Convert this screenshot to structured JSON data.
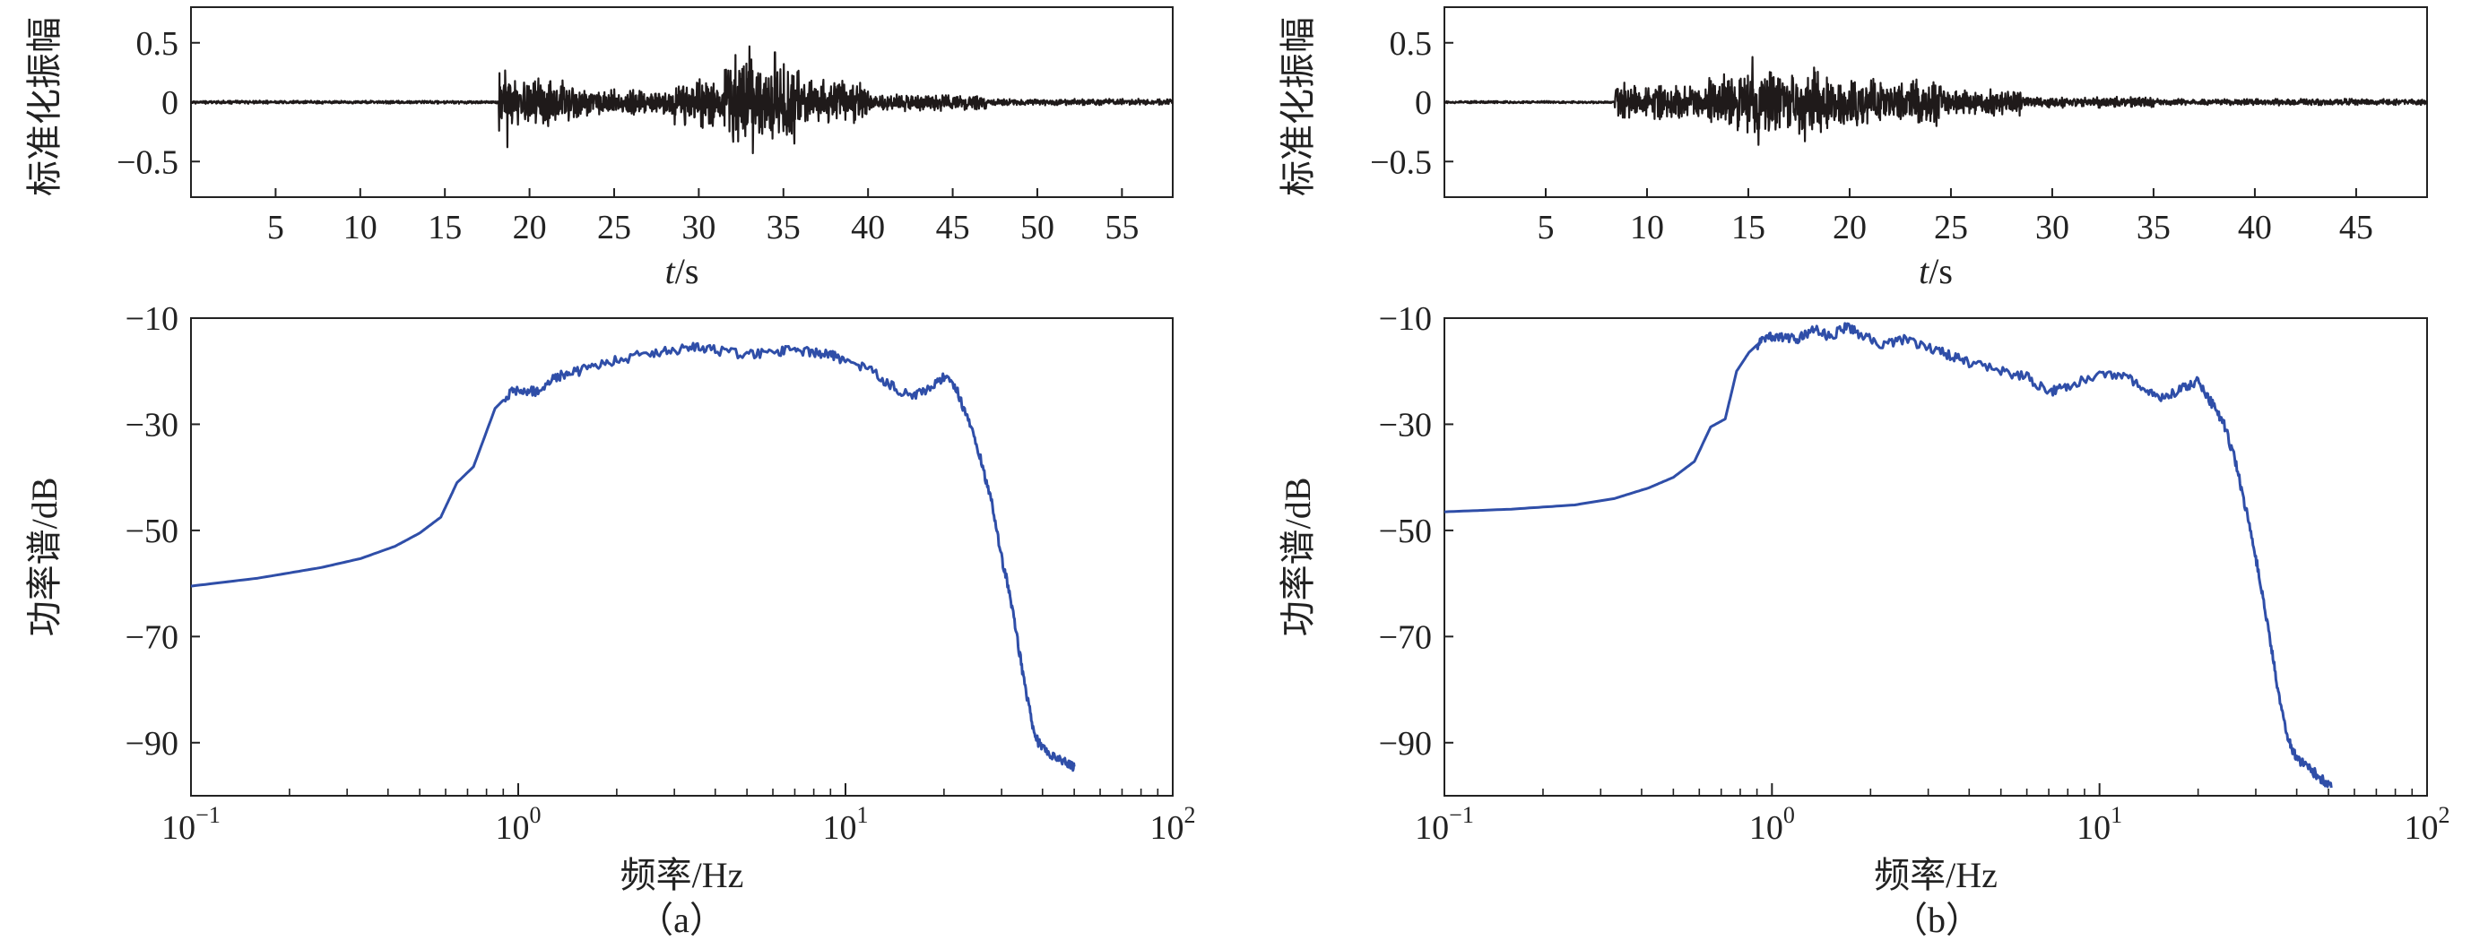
{
  "figure": {
    "panel_labels": [
      "（a）",
      "（b）"
    ]
  },
  "colors": {
    "waveform": "#1f1a1a",
    "spectrum": "#2f4ea8",
    "axis": "#222222"
  },
  "chart_data": [
    {
      "id": "a_time",
      "type": "line",
      "title": "",
      "xlabel_italic": "t",
      "xlabel_unit": "/s",
      "ylabel": "标准化振幅",
      "xlim": [
        0,
        58
      ],
      "ylim": [
        -0.8,
        0.8
      ],
      "xticks": [
        5,
        10,
        15,
        20,
        25,
        30,
        35,
        40,
        45,
        50,
        55
      ],
      "yticks": [
        0.5,
        0,
        -0.5
      ],
      "ytick_labels": [
        "0.5",
        "0",
        "−0.5"
      ],
      "envelope": {
        "baseline": 0.015,
        "segments": [
          {
            "from": 0,
            "to": 18.2,
            "amp": 0.015
          },
          {
            "from": 18.2,
            "to": 19.0,
            "amp": 0.3
          },
          {
            "from": 19.0,
            "to": 23.0,
            "amp": 0.22
          },
          {
            "from": 23.0,
            "to": 28.5,
            "amp": 0.12
          },
          {
            "from": 28.5,
            "to": 31.5,
            "amp": 0.22
          },
          {
            "from": 31.5,
            "to": 36.0,
            "amp": 0.4
          },
          {
            "from": 36.0,
            "to": 40.0,
            "amp": 0.2
          },
          {
            "from": 40.0,
            "to": 47.0,
            "amp": 0.08
          },
          {
            "from": 47.0,
            "to": 58.0,
            "amp": 0.03
          }
        ],
        "peaks": [
          {
            "t": 18.7,
            "v": -0.38
          },
          {
            "t": 33.0,
            "v": 0.47
          },
          {
            "t": 33.2,
            "v": -0.43
          },
          {
            "t": 34.5,
            "v": 0.42
          }
        ]
      }
    },
    {
      "id": "b_time",
      "type": "line",
      "title": "",
      "xlabel_italic": "t",
      "xlabel_unit": "/s",
      "ylabel": "标准化振幅",
      "xlim": [
        0,
        48.5
      ],
      "ylim": [
        -0.8,
        0.8
      ],
      "xticks": [
        5,
        10,
        15,
        20,
        25,
        30,
        35,
        40,
        45
      ],
      "yticks": [
        0.5,
        0,
        -0.5
      ],
      "ytick_labels": [
        "0.5",
        "0",
        "−0.5"
      ],
      "envelope": {
        "baseline": 0.012,
        "segments": [
          {
            "from": 0,
            "to": 8.4,
            "amp": 0.012
          },
          {
            "from": 8.4,
            "to": 13.0,
            "amp": 0.17
          },
          {
            "from": 13.0,
            "to": 19.0,
            "amp": 0.3
          },
          {
            "from": 19.0,
            "to": 24.5,
            "amp": 0.22
          },
          {
            "from": 24.5,
            "to": 28.5,
            "amp": 0.12
          },
          {
            "from": 28.5,
            "to": 35.0,
            "amp": 0.05
          },
          {
            "from": 35.0,
            "to": 48.5,
            "amp": 0.03
          }
        ],
        "peaks": [
          {
            "t": 15.2,
            "v": 0.38
          },
          {
            "t": 15.5,
            "v": -0.36
          },
          {
            "t": 17.8,
            "v": -0.33
          }
        ]
      }
    },
    {
      "id": "a_spec",
      "type": "line",
      "xscale": "log",
      "xlabel": "频率/Hz",
      "ylabel": "功率谱/dB",
      "xlim": [
        0.1,
        100
      ],
      "ylim": [
        -100,
        -10
      ],
      "xticks": [
        0.1,
        1,
        10,
        100
      ],
      "xtick_labels": [
        {
          "base": "10",
          "exp": "−1"
        },
        {
          "base": "10",
          "exp": "0"
        },
        {
          "base": "10",
          "exp": "1"
        },
        {
          "base": "10",
          "exp": "2"
        }
      ],
      "yticks": [
        -10,
        -30,
        -50,
        -70,
        -90
      ],
      "ytick_labels": [
        "−10",
        "−30",
        "−50",
        "−70",
        "−90"
      ],
      "x": [
        0.1,
        0.16,
        0.25,
        0.33,
        0.42,
        0.5,
        0.58,
        0.65,
        0.73,
        0.85,
        0.95,
        1.05,
        1.15,
        1.3,
        1.45,
        1.7,
        2.0,
        2.5,
        3.0,
        3.5,
        4.0,
        5.0,
        6.0,
        7.0,
        8.0,
        9.0,
        10.0,
        12.0,
        14.0,
        16.0,
        18.0,
        20.0,
        22.0,
        24.0,
        26.0,
        28.0,
        30.0,
        32.0,
        34.0,
        36.0,
        38.0,
        40.0,
        44.0,
        48.0,
        50.0
      ],
      "y": [
        -60.5,
        -59,
        -57,
        -55.3,
        -53,
        -50.5,
        -47.5,
        -41,
        -38,
        -27,
        -24,
        -23.5,
        -24,
        -21,
        -20.5,
        -19,
        -18,
        -16.5,
        -16,
        -15.5,
        -16,
        -17,
        -16.5,
        -16,
        -16.5,
        -17,
        -18,
        -20,
        -23,
        -25,
        -23,
        -21,
        -24,
        -30,
        -37,
        -45,
        -55,
        -63,
        -73,
        -82,
        -89,
        -91,
        -93,
        -94,
        -94.5
      ]
    },
    {
      "id": "b_spec",
      "type": "line",
      "xscale": "log",
      "xlabel": "频率/Hz",
      "ylabel": "功率谱/dB",
      "xlim": [
        0.1,
        100
      ],
      "ylim": [
        -100,
        -10
      ],
      "xticks": [
        0.1,
        1,
        10,
        100
      ],
      "xtick_labels": [
        {
          "base": "10",
          "exp": "−1"
        },
        {
          "base": "10",
          "exp": "0"
        },
        {
          "base": "10",
          "exp": "1"
        },
        {
          "base": "10",
          "exp": "2"
        }
      ],
      "yticks": [
        -10,
        -30,
        -50,
        -70,
        -90
      ],
      "ytick_labels": [
        "−10",
        "−30",
        "−50",
        "−70",
        "−90"
      ],
      "x": [
        0.1,
        0.16,
        0.25,
        0.33,
        0.42,
        0.5,
        0.58,
        0.65,
        0.72,
        0.78,
        0.85,
        0.92,
        1.0,
        1.1,
        1.2,
        1.35,
        1.5,
        1.7,
        1.9,
        2.2,
        2.5,
        3.0,
        3.5,
        4.0,
        5.0,
        6.0,
        7.0,
        8.0,
        10.0,
        12.0,
        14.0,
        16.0,
        18.0,
        20.0,
        22.0,
        24.0,
        26.0,
        28.0,
        30.0,
        32.0,
        34.0,
        36.0,
        38.0,
        40.0,
        44.0,
        48.0,
        51.0
      ],
      "y": [
        -46.5,
        -46,
        -45.2,
        -44,
        -42,
        -40,
        -37,
        -30.5,
        -29,
        -20,
        -16.5,
        -14.5,
        -13.5,
        -13.8,
        -14,
        -12,
        -13.5,
        -11.5,
        -13.5,
        -15,
        -14,
        -15.5,
        -17,
        -18.5,
        -20,
        -21,
        -24,
        -23,
        -20.5,
        -21,
        -24,
        -25,
        -23,
        -22,
        -26,
        -30,
        -37,
        -46,
        -55,
        -65,
        -75,
        -84,
        -90,
        -93,
        -95,
        -97,
        -98.5
      ]
    }
  ]
}
